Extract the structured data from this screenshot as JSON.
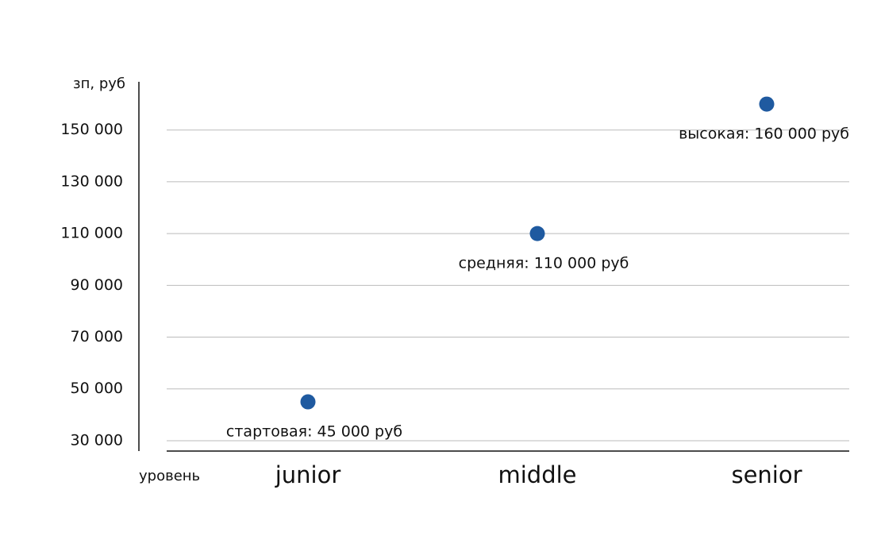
{
  "chart_data": {
    "type": "scatter",
    "y_label": "зп, руб",
    "x_label": "уровень",
    "categories": [
      "junior",
      "middle",
      "senior"
    ],
    "values": [
      45000,
      110000,
      160000
    ],
    "value_labels": [
      "стартовая: 45 000 руб",
      "средняя: 110 000 руб",
      "высокая: 160 000 руб"
    ],
    "color": "#1f5aa0",
    "ylim": [
      26000,
      168000
    ],
    "yticks": [
      {
        "value": 30000,
        "label": "30 000"
      },
      {
        "value": 50000,
        "label": "50 000"
      },
      {
        "value": 70000,
        "label": "70 000"
      },
      {
        "value": 90000,
        "label": "90 000"
      },
      {
        "value": 110000,
        "label": "110 000"
      },
      {
        "value": 130000,
        "label": "130 000"
      },
      {
        "value": 150000,
        "label": "150 000"
      }
    ],
    "grid": true
  }
}
